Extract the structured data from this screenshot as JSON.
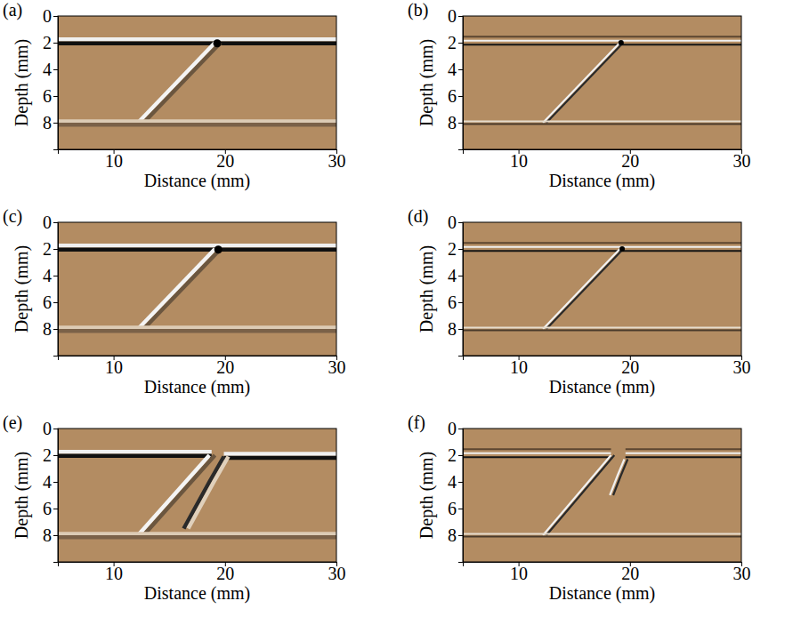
{
  "chart_data": [
    {
      "type": "image",
      "title": "(a)",
      "x_label": "Distance (mm)",
      "y_label": "Depth (mm)",
      "color": "#b38c62",
      "xlim": [
        5,
        30
      ],
      "ylim": [
        0,
        10
      ],
      "xticks": [
        10,
        20,
        30
      ],
      "yticks": [
        0,
        2,
        4,
        6,
        8
      ],
      "series": [
        {
          "x": [
            5,
            30
          ],
          "values": [
            1.75,
            1.75
          ],
          "color": "#f0f0f0"
        },
        {
          "x": [
            5,
            30
          ],
          "values": [
            2.05,
            2.05
          ],
          "color": "#101010"
        },
        {
          "x": [
            12.2,
            19.1
          ],
          "values": [
            8,
            2
          ],
          "color": "#f4f4f4"
        },
        {
          "x": [
            12.7,
            19.6
          ],
          "values": [
            8,
            2
          ],
          "color": "#6b563f"
        },
        {
          "x": [
            5,
            30
          ],
          "values": [
            7.9,
            7.9
          ],
          "color": "#dccbb5"
        },
        {
          "x": [
            5,
            30
          ],
          "values": [
            8.15,
            8.15
          ],
          "color": "#7a6148"
        },
        {
          "type": "scatter",
          "marker": "circle",
          "x": [
            19.3
          ],
          "values": [
            2.05
          ],
          "color": "#000000"
        }
      ]
    },
    {
      "type": "image",
      "title": "(b)",
      "x_label": "Distance (mm)",
      "y_label": "Depth (mm)",
      "color": "#b38c62",
      "xlim": [
        5,
        30
      ],
      "ylim": [
        0,
        10
      ],
      "xticks": [
        10,
        20,
        30
      ],
      "yticks": [
        0,
        2,
        4,
        6,
        8
      ],
      "series": [
        {
          "x": [
            5,
            30
          ],
          "values": [
            1.55,
            1.55
          ],
          "color": "#5c4630"
        },
        {
          "x": [
            5,
            30
          ],
          "values": [
            1.85,
            1.85
          ],
          "color": "#f0f0f0"
        },
        {
          "x": [
            5,
            30
          ],
          "values": [
            2.15,
            2.15
          ],
          "color": "#151515"
        },
        {
          "x": [
            12.2,
            19.1
          ],
          "values": [
            8,
            2
          ],
          "color": "#f2f2f2"
        },
        {
          "x": [
            12.5,
            19.4
          ],
          "values": [
            8,
            2
          ],
          "color": "#2a2a2a"
        },
        {
          "x": [
            5,
            30
          ],
          "values": [
            7.9,
            7.9
          ],
          "color": "#e6dccd"
        },
        {
          "x": [
            5,
            30
          ],
          "values": [
            8.1,
            8.1
          ],
          "color": "#4a3a2a"
        },
        {
          "type": "scatter",
          "marker": "circle",
          "x": [
            19.2
          ],
          "values": [
            2.0
          ],
          "color": "#000000"
        }
      ]
    },
    {
      "type": "image",
      "title": "(c)",
      "x_label": "Distance (mm)",
      "y_label": "Depth (mm)",
      "color": "#b38c62",
      "xlim": [
        5,
        30
      ],
      "ylim": [
        0,
        10
      ],
      "xticks": [
        10,
        20,
        30
      ],
      "yticks": [
        0,
        2,
        4,
        6,
        8
      ],
      "series": [
        {
          "x": [
            5,
            30
          ],
          "values": [
            1.75,
            1.75
          ],
          "color": "#f0f0f0"
        },
        {
          "x": [
            5,
            30
          ],
          "values": [
            2.05,
            2.05
          ],
          "color": "#101010"
        },
        {
          "x": [
            12.2,
            19.1
          ],
          "values": [
            8,
            2
          ],
          "color": "#f4f4f4"
        },
        {
          "x": [
            12.7,
            19.6
          ],
          "values": [
            8,
            2
          ],
          "color": "#6b563f"
        },
        {
          "x": [
            5,
            30
          ],
          "values": [
            7.9,
            7.9
          ],
          "color": "#dccbb5"
        },
        {
          "x": [
            5,
            30
          ],
          "values": [
            8.15,
            8.15
          ],
          "color": "#7a6148"
        },
        {
          "type": "scatter",
          "marker": "circle",
          "x": [
            19.4
          ],
          "values": [
            2.05
          ],
          "color": "#000000"
        }
      ]
    },
    {
      "type": "image",
      "title": "(d)",
      "x_label": "Distance (mm)",
      "y_label": "Depth (mm)",
      "color": "#b38c62",
      "xlim": [
        5,
        30
      ],
      "ylim": [
        0,
        10
      ],
      "xticks": [
        10,
        20,
        30
      ],
      "yticks": [
        0,
        2,
        4,
        6,
        8
      ],
      "series": [
        {
          "x": [
            5,
            30
          ],
          "values": [
            1.55,
            1.55
          ],
          "color": "#5c4630"
        },
        {
          "x": [
            5,
            30
          ],
          "values": [
            1.85,
            1.85
          ],
          "color": "#f0f0f0"
        },
        {
          "x": [
            5,
            30
          ],
          "values": [
            2.15,
            2.15
          ],
          "color": "#151515"
        },
        {
          "x": [
            12.2,
            19.1
          ],
          "values": [
            8,
            2
          ],
          "color": "#f2f2f2"
        },
        {
          "x": [
            12.5,
            19.4
          ],
          "values": [
            8,
            2
          ],
          "color": "#2a2a2a"
        },
        {
          "x": [
            5,
            30
          ],
          "values": [
            7.9,
            7.9
          ],
          "color": "#e6dccd"
        },
        {
          "x": [
            5,
            30
          ],
          "values": [
            8.1,
            8.1
          ],
          "color": "#4a3a2a"
        },
        {
          "type": "scatter",
          "marker": "circle",
          "x": [
            19.3
          ],
          "values": [
            2.0
          ],
          "color": "#000000"
        }
      ]
    },
    {
      "type": "image",
      "title": "(e)",
      "x_label": "Distance (mm)",
      "y_label": "Depth (mm)",
      "color": "#b38c62",
      "xlim": [
        5,
        30
      ],
      "ylim": [
        0,
        10
      ],
      "xticks": [
        10,
        20,
        30
      ],
      "yticks": [
        0,
        2,
        4,
        6,
        8
      ],
      "series": [
        {
          "x": [
            5,
            18.8
          ],
          "values": [
            1.75,
            1.75
          ],
          "color": "#f0f0f0"
        },
        {
          "x": [
            5,
            18.8
          ],
          "values": [
            2.05,
            2.05
          ],
          "color": "#101010"
        },
        {
          "x": [
            19.9,
            30
          ],
          "values": [
            1.9,
            1.9
          ],
          "color": "#f0f0f0"
        },
        {
          "x": [
            19.9,
            30
          ],
          "values": [
            2.2,
            2.2
          ],
          "color": "#101010"
        },
        {
          "x": [
            12.2,
            18.6
          ],
          "values": [
            8,
            2
          ],
          "color": "#f4f4f4"
        },
        {
          "x": [
            12.7,
            19.1
          ],
          "values": [
            8,
            2
          ],
          "color": "#6b563f"
        },
        {
          "x": [
            19.9,
            18.6,
            16.3
          ],
          "values": [
            2.1,
            4,
            7.5
          ],
          "color": "#2a2a2a"
        },
        {
          "x": [
            20.3,
            19.0,
            16.7
          ],
          "values": [
            2.1,
            4,
            7.5
          ],
          "color": "#e0d0bb"
        },
        {
          "x": [
            5,
            30
          ],
          "values": [
            7.9,
            7.9
          ],
          "color": "#dccbb5"
        },
        {
          "x": [
            5,
            30
          ],
          "values": [
            8.15,
            8.15
          ],
          "color": "#7a6148"
        }
      ]
    },
    {
      "type": "image",
      "title": "(f)",
      "x_label": "Distance (mm)",
      "y_label": "Depth (mm)",
      "color": "#b38c62",
      "xlim": [
        5,
        30
      ],
      "ylim": [
        0,
        10
      ],
      "xticks": [
        10,
        20,
        30
      ],
      "yticks": [
        0,
        2,
        4,
        6,
        8
      ],
      "series": [
        {
          "x": [
            5,
            18.3
          ],
          "values": [
            1.55,
            1.55
          ],
          "color": "#5c4630"
        },
        {
          "x": [
            5,
            18.3
          ],
          "values": [
            1.85,
            1.85
          ],
          "color": "#f0f0f0"
        },
        {
          "x": [
            5,
            18.3
          ],
          "values": [
            2.15,
            2.15
          ],
          "color": "#151515"
        },
        {
          "x": [
            19.6,
            30
          ],
          "values": [
            1.55,
            1.55
          ],
          "color": "#5c4630"
        },
        {
          "x": [
            19.6,
            30
          ],
          "values": [
            1.85,
            1.85
          ],
          "color": "#f0f0f0"
        },
        {
          "x": [
            19.6,
            30
          ],
          "values": [
            2.15,
            2.15
          ],
          "color": "#151515"
        },
        {
          "x": [
            12.2,
            18.3
          ],
          "values": [
            8,
            2
          ],
          "color": "#f2f2f2"
        },
        {
          "x": [
            12.5,
            18.6
          ],
          "values": [
            8,
            2
          ],
          "color": "#2a2a2a"
        },
        {
          "x": [
            19.5,
            18.9,
            18.2
          ],
          "values": [
            2.3,
            3.5,
            5
          ],
          "color": "#f0f0f0"
        },
        {
          "x": [
            19.8,
            19.2,
            18.5
          ],
          "values": [
            2.3,
            3.5,
            5
          ],
          "color": "#2a2a2a"
        },
        {
          "x": [
            5,
            30
          ],
          "values": [
            7.9,
            7.9
          ],
          "color": "#e6dccd"
        },
        {
          "x": [
            5,
            30
          ],
          "values": [
            8.1,
            8.1
          ],
          "color": "#4a3a2a"
        }
      ]
    }
  ]
}
